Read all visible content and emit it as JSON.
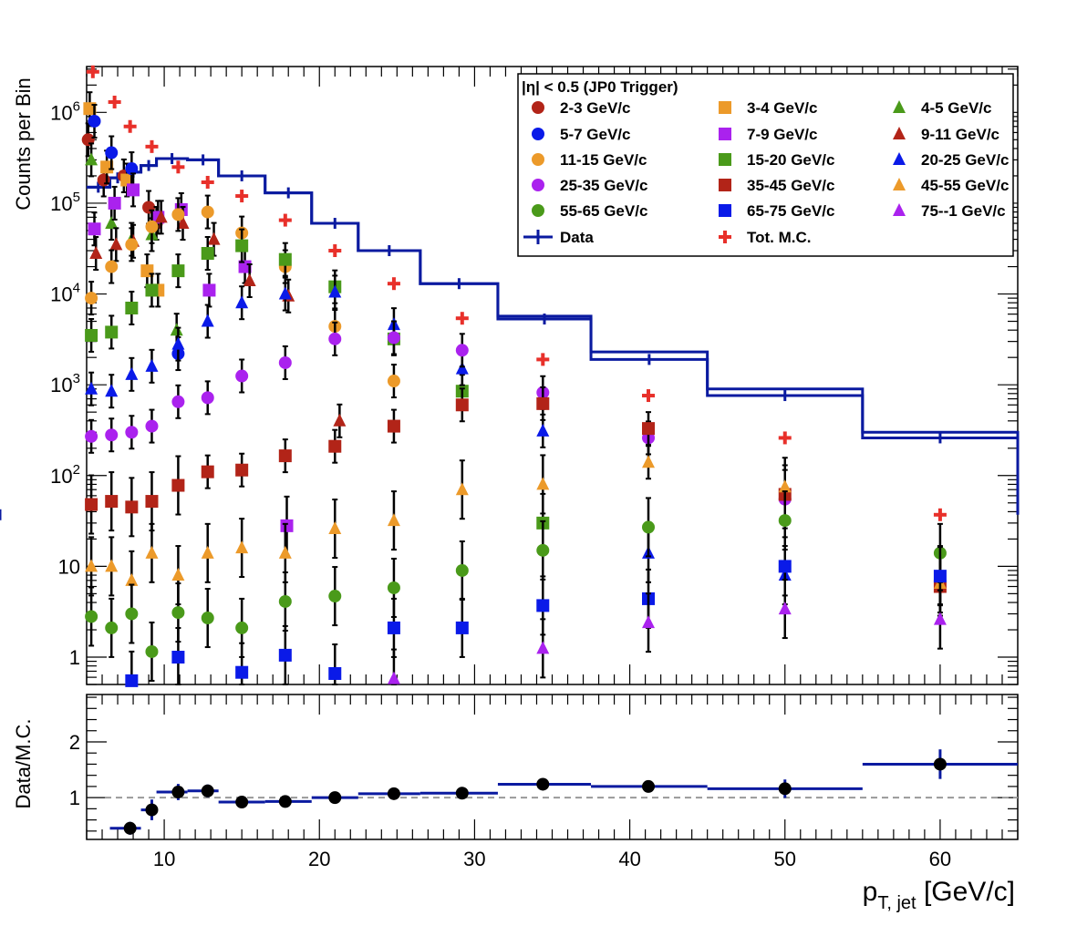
{
  "chart_data": [
    {
      "type": "scatter",
      "panel": "top",
      "ylabel": "Counts per Bin",
      "xlim": [
        5,
        65
      ],
      "ylim": [
        0.5,
        3200000
      ],
      "log_y": true,
      "yticks": [
        {
          "value": 1000000,
          "base": "10",
          "exp": "6"
        },
        {
          "value": 100000,
          "base": "10",
          "exp": "5"
        },
        {
          "value": 10000,
          "base": "10",
          "exp": "4"
        },
        {
          "value": 1000,
          "base": "10",
          "exp": "3"
        },
        {
          "value": 100,
          "base": "10",
          "exp": "2"
        },
        {
          "value": 10,
          "base": "10",
          "exp": ""
        },
        {
          "value": 1,
          "base": "1",
          "exp": ""
        }
      ],
      "legend": {
        "title": "|η| < 0.5 (JP0 Trigger)",
        "placement": "top-right"
      },
      "data_hist": {
        "name": "Data",
        "color": "#0a1aa0",
        "edges": [
          5,
          6.5,
          7.5,
          8.5,
          9.5,
          11.5,
          13.5,
          16.5,
          19.5,
          22.5,
          26.5,
          31.5,
          37.5,
          45,
          55,
          65
        ],
        "values": [
          150000,
          190000,
          220000,
          260000,
          310000,
          300000,
          200000,
          130000,
          60000,
          30000,
          13000,
          5300,
          1900,
          760,
          260,
          37
        ]
      },
      "mc_hist": {
        "name": "Tot. M.C.",
        "color": "#0a1aa0",
        "edges": [
          5,
          6.5,
          7.5,
          8.5,
          9.5,
          11.5,
          13.5,
          16.5,
          19.5,
          22.5,
          26.5,
          31.5,
          37.5,
          45,
          55,
          65
        ],
        "values": [
          150000,
          190000,
          220000,
          260000,
          310000,
          300000,
          200000,
          130000,
          60000,
          30000,
          13000,
          5700,
          2300,
          900,
          300,
          60
        ]
      },
      "mc_points": {
        "name": "Tot. M.C.",
        "color": "#e8302a",
        "marker": "cross",
        "x": [
          5.4,
          6.8,
          7.8,
          9.2,
          10.9,
          12.8,
          15,
          17.8,
          21,
          24.8,
          29.2,
          34.4,
          41.2,
          50,
          60
        ],
        "y": [
          2800000,
          1300000,
          700000,
          420000,
          250000,
          170000,
          120000,
          65000,
          30000,
          13000,
          5400,
          1900,
          760,
          260,
          37
        ]
      },
      "series": [
        {
          "name": "2-3 GeV/c",
          "color": "#b22418",
          "marker": "circle",
          "x": [
            5.1,
            6.1,
            7.4,
            9.0,
            9.5
          ],
          "y": [
            500000,
            180000,
            200000,
            90000,
            60000
          ]
        },
        {
          "name": "3-4 GeV/c",
          "color": "#ec9a2a",
          "marker": "square",
          "x": [
            5.2,
            6.3,
            7.6,
            8.9,
            9.6
          ],
          "y": [
            1100000,
            250000,
            180000,
            18000,
            11000
          ]
        },
        {
          "name": "4-5 GeV/c",
          "color": "#4a9a1a",
          "marker": "triangle",
          "x": [
            5.3,
            6.6,
            7.9,
            9.2,
            10.8
          ],
          "y": [
            300000,
            60000,
            40000,
            45000,
            4000
          ]
        },
        {
          "name": "5-7 GeV/c",
          "color": "#0a1ae8",
          "marker": "circle",
          "x": [
            5.5,
            6.6,
            7.9,
            10.9
          ],
          "y": [
            800000,
            360000,
            240000,
            2200
          ]
        },
        {
          "name": "7-9 GeV/c",
          "color": "#aa22ee",
          "marker": "square",
          "x": [
            5.5,
            6.8,
            8.0,
            9.6,
            11.1,
            12.9,
            15.2,
            17.9
          ],
          "y": [
            52000,
            100000,
            140000,
            70000,
            85000,
            11000,
            20000,
            28
          ]
        },
        {
          "name": "9-11 GeV/c",
          "color": "#b22418",
          "marker": "triangle",
          "x": [
            5.6,
            6.9,
            8.0,
            9.8,
            11.2,
            13.2,
            15.5,
            18.0,
            21.3
          ],
          "y": [
            28000,
            35000,
            38000,
            70000,
            60000,
            40000,
            14000,
            9500,
            400
          ]
        },
        {
          "name": "11-15 GeV/c",
          "color": "#ec9a2a",
          "marker": "circle",
          "x": [
            5.3,
            6.6,
            7.9,
            9.2,
            10.9,
            12.8,
            15,
            17.8,
            21,
            24.8
          ],
          "y": [
            9000,
            20000,
            35000,
            55000,
            75000,
            80000,
            47000,
            20000,
            4400,
            1100
          ]
        },
        {
          "name": "15-20 GeV/c",
          "color": "#4a9a1a",
          "marker": "square",
          "x": [
            5.3,
            6.6,
            7.9,
            9.2,
            10.9,
            12.8,
            15,
            17.8,
            21,
            24.8,
            29.2,
            34.4
          ],
          "y": [
            3500,
            3800,
            7000,
            11000,
            18000,
            28000,
            34000,
            24000,
            12000,
            3200,
            850,
            30
          ]
        },
        {
          "name": "20-25 GeV/c",
          "color": "#0a1ae8",
          "marker": "triangle",
          "x": [
            5.3,
            6.6,
            7.9,
            9.2,
            10.9,
            12.8,
            15,
            17.8,
            21,
            24.8,
            29.2,
            34.4,
            41.2,
            50,
            60
          ],
          "y": [
            900,
            850,
            1300,
            1600,
            2800,
            5000,
            8000,
            10000,
            10500,
            4600,
            1500,
            310,
            14,
            8,
            8
          ]
        },
        {
          "name": "25-35 GeV/c",
          "color": "#aa22ee",
          "marker": "circle",
          "x": [
            5.3,
            6.6,
            7.9,
            9.2,
            10.9,
            12.8,
            15,
            17.8,
            21,
            24.8,
            29.2,
            34.4,
            41.2,
            50
          ],
          "y": [
            270,
            280,
            300,
            350,
            650,
            720,
            1250,
            1750,
            3200,
            3300,
            2400,
            820,
            260,
            55
          ]
        },
        {
          "name": "35-45 GeV/c",
          "color": "#b22418",
          "marker": "square",
          "x": [
            5.3,
            6.6,
            7.9,
            9.2,
            10.9,
            12.8,
            15,
            17.8,
            21,
            24.8,
            29.2,
            34.4,
            41.2,
            50,
            60
          ],
          "y": [
            48,
            52,
            45,
            52,
            78,
            110,
            115,
            165,
            210,
            350,
            600,
            620,
            330,
            62,
            6
          ]
        },
        {
          "name": "45-55 GeV/c",
          "color": "#ec9a2a",
          "marker": "triangle",
          "x": [
            5.3,
            6.6,
            7.9,
            9.2,
            10.9,
            12.8,
            15,
            17.8,
            21,
            24.8,
            29.2,
            34.4,
            41.2,
            50,
            60
          ],
          "y": [
            10,
            10,
            7,
            14,
            8,
            14,
            16,
            14,
            26,
            32,
            70,
            80,
            140,
            75,
            6.5
          ]
        },
        {
          "name": "55-65 GeV/c",
          "color": "#4a9a1a",
          "marker": "circle",
          "x": [
            5.3,
            6.6,
            7.9,
            9.2,
            10.9,
            12.8,
            15,
            17.8,
            21,
            24.8,
            29.2,
            34.4,
            41.2,
            50,
            60
          ],
          "y": [
            2.8,
            2.1,
            3,
            1.15,
            3.1,
            2.7,
            2.1,
            4.1,
            4.7,
            5.8,
            9,
            15,
            27,
            32,
            14
          ]
        },
        {
          "name": "65-75 GeV/c",
          "color": "#0a1ae8",
          "marker": "square",
          "x": [
            7.9,
            10.9,
            15,
            17.8,
            21,
            24.8,
            29.2,
            34.4,
            41.2,
            50,
            60
          ],
          "y": [
            0.55,
            1,
            0.68,
            1.05,
            0.66,
            2.1,
            2.1,
            3.7,
            4.4,
            10,
            7.8
          ]
        },
        {
          "name": "75--1 GeV/c",
          "color": "#aa22ee",
          "marker": "triangle",
          "x": [
            24.8,
            34.4,
            41.2,
            50,
            60
          ],
          "y": [
            0.58,
            1.25,
            2.4,
            3.4,
            2.6
          ]
        }
      ]
    },
    {
      "type": "scatter",
      "panel": "bottom",
      "ylabel": "Data/M.C.",
      "xlabel": "p",
      "xlabel_sub": "T, jet",
      "xlabel_unit": "[GeV/c]",
      "xlim": [
        5,
        65
      ],
      "ylim": [
        0.25,
        2.85
      ],
      "xticks": [
        10,
        20,
        30,
        40,
        50,
        60
      ],
      "yticks": [
        1,
        2
      ],
      "reference_line": 1,
      "color": "#0a1aa0",
      "edges": [
        6.5,
        8.5,
        9.5,
        11.5,
        13.5,
        16.5,
        19.5,
        22.5,
        26.5,
        31.5,
        37.5,
        45,
        55,
        65
      ],
      "values": [
        0.45,
        0.78,
        1.1,
        1.12,
        0.92,
        0.93,
        1.0,
        1.07,
        1.08,
        1.24,
        1.2,
        1.16,
        1.6
      ],
      "x": [
        7.8,
        9.2,
        10.9,
        12.8,
        15,
        17.8,
        21,
        24.8,
        29.2,
        34.4,
        41.2,
        50,
        60
      ],
      "errors": [
        0.05,
        0.12,
        0.08,
        0.05,
        0.04,
        0.04,
        0.03,
        0.03,
        0.03,
        0.03,
        0.04,
        0.1,
        0.2
      ]
    }
  ]
}
